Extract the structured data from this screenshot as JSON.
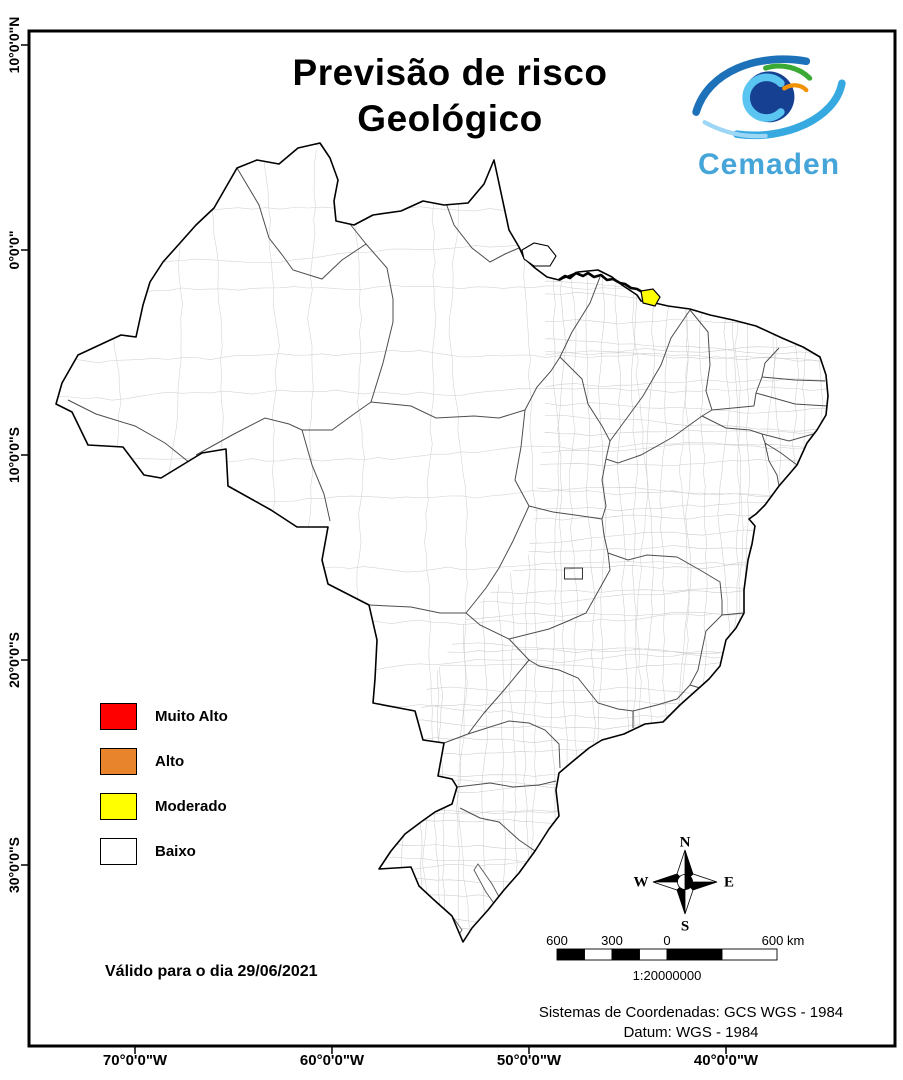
{
  "title": {
    "line1": "Previsão de risco",
    "line2": "Geológico"
  },
  "logo": {
    "name": "Cemaden"
  },
  "legend": {
    "items": [
      {
        "label": "Muito Alto",
        "color": "#FE0000"
      },
      {
        "label": "Alto",
        "color": "#E8842C"
      },
      {
        "label": "Moderado",
        "color": "#FFFF00"
      },
      {
        "label": "Baixo",
        "color": "#FFFFFF"
      }
    ]
  },
  "validity_text": "Válido para o dia 29/06/2021",
  "compass": {
    "north": "N",
    "east": "E",
    "south": "S",
    "west": "W"
  },
  "scale_bar": {
    "tick_labels": [
      "600",
      "300",
      "0",
      "600 km"
    ],
    "ratio_text": "1:20000000"
  },
  "footer": {
    "coordinate_system": "Sistemas de Coordenadas: GCS WGS - 1984",
    "datum": "Datum: WGS - 1984"
  },
  "axes": {
    "lat_labels": [
      "10°0'0\"N",
      "0°0'0\"",
      "10°0'0\"S",
      "20°0'0\"S",
      "30°0'0\"S"
    ],
    "lon_labels": [
      "70°0'0\"W",
      "60°0'0\"W",
      "50°0'0\"W",
      "40°0'0\"W"
    ]
  },
  "map": {
    "highlight": {
      "risk_level": "Moderado",
      "color": "#FFFF00"
    },
    "outline_color": "#000000",
    "state_line_color": "#4d4d4d",
    "municipality_line_color": "#cccccc"
  }
}
